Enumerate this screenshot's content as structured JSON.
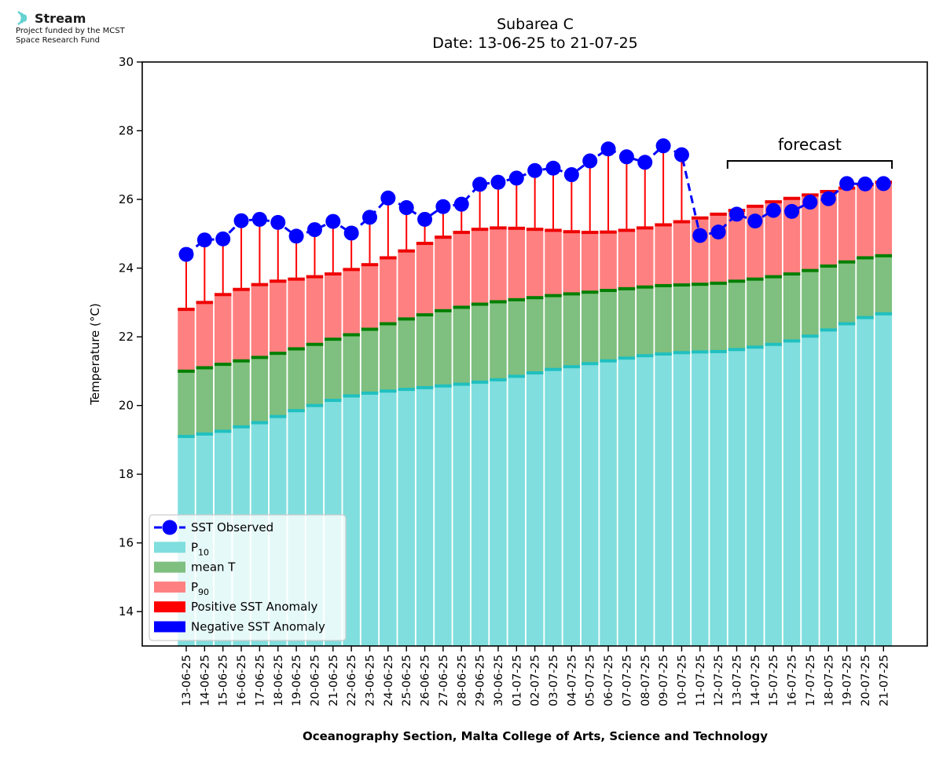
{
  "logo": {
    "name": "Stream",
    "line1": "Project funded by the MCST",
    "line2": "Space Research Fund"
  },
  "footer": "Oceanography Section, Malta College of Arts, Science and Technology",
  "colors": {
    "p10": "#80dede",
    "p10_edge": "#20c0c0",
    "mean": "#7fbf7f",
    "mean_edge": "#007f00",
    "p90": "#ff8080",
    "p90_edge": "#ee0000",
    "pos_anomaly": "#ff0000",
    "neg_anomaly": "#0000ff",
    "observed": "#0000ff"
  },
  "chart_data": {
    "type": "bar",
    "title": "Subarea C",
    "subtitle": "Date: 13-06-25 to 21-07-25",
    "xlabel": "",
    "ylabel": "Temperature (°C)",
    "ylim": [
      13,
      30
    ],
    "yticks": [
      14,
      16,
      18,
      20,
      22,
      24,
      26,
      28,
      30
    ],
    "forecast_label": "forecast",
    "forecast_range": [
      "12-07-25",
      "21-07-25"
    ],
    "categories": [
      "13-06-25",
      "14-06-25",
      "15-06-25",
      "16-06-25",
      "17-06-25",
      "18-06-25",
      "19-06-25",
      "20-06-25",
      "21-06-25",
      "22-06-25",
      "23-06-25",
      "24-06-25",
      "25-06-25",
      "26-06-25",
      "27-06-25",
      "28-06-25",
      "29-06-25",
      "30-06-25",
      "01-07-25",
      "02-07-25",
      "03-07-25",
      "04-07-25",
      "05-07-25",
      "06-07-25",
      "07-07-25",
      "08-07-25",
      "09-07-25",
      "10-07-25",
      "11-07-25",
      "12-07-25",
      "13-07-25",
      "14-07-25",
      "15-07-25",
      "16-07-25",
      "17-07-25",
      "18-07-25",
      "19-07-25",
      "20-07-25",
      "21-07-25"
    ],
    "series": [
      {
        "name": "P_10",
        "values": [
          19.1,
          19.17,
          19.25,
          19.38,
          19.5,
          19.68,
          19.85,
          20.0,
          20.15,
          20.28,
          20.36,
          20.42,
          20.47,
          20.52,
          20.57,
          20.62,
          20.68,
          20.75,
          20.85,
          20.95,
          21.05,
          21.13,
          21.22,
          21.3,
          21.38,
          21.45,
          21.5,
          21.54,
          21.56,
          21.57,
          21.63,
          21.7,
          21.78,
          21.88,
          22.02,
          22.2,
          22.38,
          22.56,
          22.67
        ]
      },
      {
        "name": "mean T",
        "values": [
          21.0,
          21.1,
          21.2,
          21.3,
          21.4,
          21.52,
          21.65,
          21.78,
          21.93,
          22.06,
          22.22,
          22.38,
          22.52,
          22.64,
          22.76,
          22.86,
          22.95,
          23.02,
          23.08,
          23.14,
          23.2,
          23.25,
          23.3,
          23.35,
          23.4,
          23.45,
          23.49,
          23.51,
          23.53,
          23.56,
          23.62,
          23.68,
          23.75,
          23.83,
          23.93,
          24.06,
          24.18,
          24.3,
          24.36
        ]
      },
      {
        "name": "P_90",
        "values": [
          22.8,
          23.0,
          23.23,
          23.38,
          23.52,
          23.62,
          23.68,
          23.75,
          23.83,
          23.96,
          24.1,
          24.3,
          24.5,
          24.72,
          24.9,
          25.04,
          25.13,
          25.17,
          25.16,
          25.13,
          25.1,
          25.06,
          25.04,
          25.05,
          25.1,
          25.17,
          25.26,
          25.35,
          25.46,
          25.57,
          25.68,
          25.8,
          25.93,
          26.03,
          26.13,
          26.23,
          26.33,
          26.43,
          26.5
        ]
      },
      {
        "name": "SST Observed",
        "values": [
          24.4,
          24.82,
          24.85,
          25.38,
          25.42,
          25.33,
          24.93,
          25.12,
          25.36,
          25.02,
          25.48,
          26.04,
          25.76,
          25.42,
          25.79,
          25.86,
          26.44,
          26.5,
          26.62,
          26.84,
          26.91,
          26.72,
          27.12,
          27.47,
          27.24,
          27.08,
          27.56,
          27.3,
          24.95,
          25.05,
          25.57,
          25.37,
          25.68,
          25.65,
          25.92,
          26.02,
          26.46,
          26.45,
          26.46
        ]
      }
    ],
    "observed_count": 28,
    "legend": {
      "position": "lower-left",
      "observed_label": "SST Observed",
      "p10_label": "P",
      "p10_sub": "10",
      "mean_label": "mean T",
      "p90_label": "P",
      "p90_sub": "90",
      "pos_label": "Positive SST Anomaly",
      "neg_label": "Negative SST Anomaly"
    },
    "grid": false
  }
}
